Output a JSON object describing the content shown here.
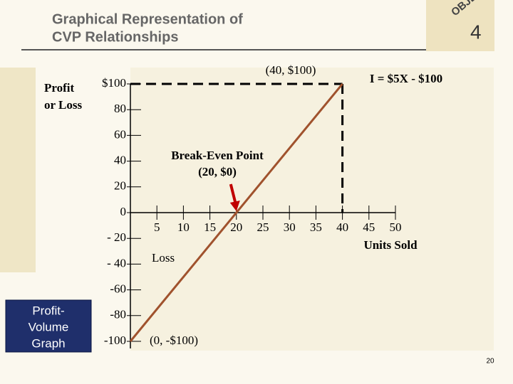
{
  "slide": {
    "title": [
      "Graphical Representation of",
      "CVP Relationships"
    ],
    "badge_word": "OBJECTIVE",
    "badge_number": "4",
    "side_label": [
      "Profit-",
      "Volume",
      "Graph"
    ],
    "page_number": "20"
  },
  "chart_data": {
    "type": "line",
    "ylabel": [
      "Profit",
      "or Loss"
    ],
    "xlabel": "Units Sold",
    "x": [
      0,
      40
    ],
    "values": [
      -100,
      100
    ],
    "color": "#a0522d",
    "xlim": [
      0,
      50
    ],
    "ylim": [
      -100,
      100
    ],
    "xticks": [
      5,
      10,
      15,
      20,
      25,
      30,
      35,
      40,
      45,
      50
    ],
    "yticks": [
      {
        "value": 100,
        "label": "$100"
      },
      80,
      60,
      40,
      20,
      0,
      {
        "value": -20,
        "label": "- 20"
      },
      {
        "value": -40,
        "label": "- 40"
      },
      -60,
      -80,
      -100
    ],
    "annotations": [
      "(40, $100)",
      "I = $5X - $100",
      "Break-Even Point",
      "(20, $0)",
      "Loss",
      "(0,  -$100)"
    ]
  }
}
